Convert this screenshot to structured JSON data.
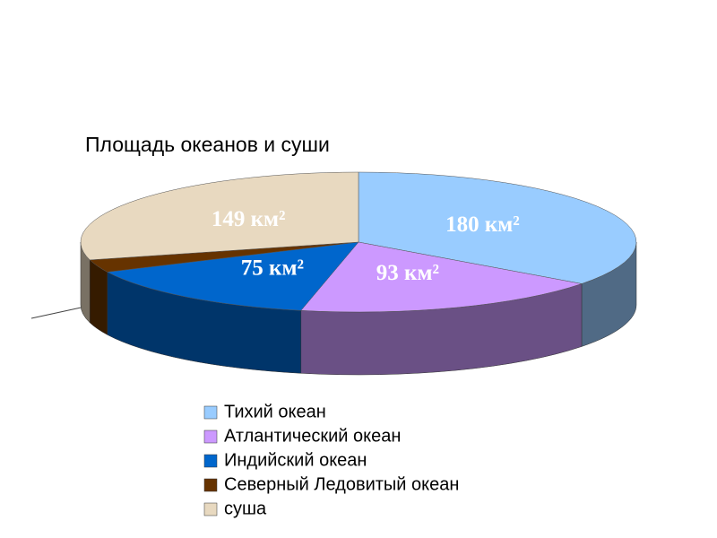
{
  "chart_data": {
    "type": "pie3d",
    "title": "Площадь океанов и суши",
    "categories": [
      "Тихий океан",
      "Атлантический океан",
      "Индийский океан",
      "Северный Ледовитый океан",
      "суша"
    ],
    "values": [
      180,
      93,
      75,
      15,
      149
    ],
    "value_labels": [
      "180 км²",
      "93 км²",
      "75 км²",
      null,
      "149 км²"
    ],
    "colors": [
      "#99ccff",
      "#cc99ff",
      "#0066cc",
      "#663300",
      "#e8d9c0"
    ],
    "legend": "bottom"
  }
}
